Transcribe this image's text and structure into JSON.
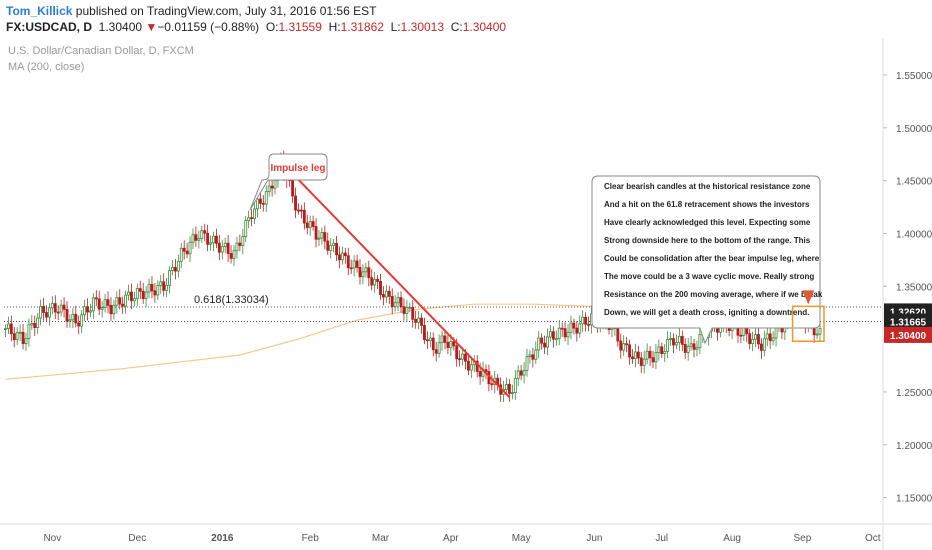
{
  "header": {
    "author": "Tom_Killick",
    "published": " published on TradingView.com, July 31, 2016 01:56 EST",
    "symbol": "FX:USDCAD, D",
    "last": "1.30400",
    "change_arrow": "▼",
    "change": "−0.01159 (−0.88%)",
    "o_label": "O:",
    "o_value": "1.31559",
    "h_label": "H:",
    "h_value": "1.31862",
    "l_label": "L:",
    "l_value": "1.30013",
    "c_label": "C:",
    "c_value": "1.30400"
  },
  "legend": {
    "title": "U.S. Dollar/Canadian Dollar, D, FXCM",
    "indicator": "MA (200, close)"
  },
  "chart_data": {
    "type": "candlestick",
    "ylim": [
      1.125,
      1.585
    ],
    "y_ticks": [
      "1.55000",
      "1.50000",
      "1.45000",
      "1.40000",
      "1.35000",
      "1.30000",
      "1.25000",
      "1.20000",
      "1.15000"
    ],
    "x_ticks": [
      "Nov",
      "Dec",
      "2016",
      "Feb",
      "Mar",
      "Apr",
      "May",
      "Jun",
      "Jul",
      "Aug",
      "Sep",
      "Oct"
    ],
    "price_labels": [
      {
        "text": "1.32620",
        "style": "dark",
        "value": 1.3262
      },
      {
        "text": "1.31665",
        "style": "dark",
        "value": 1.31665
      },
      {
        "text": "1.30400",
        "style": "red",
        "value": 1.304
      }
    ],
    "horizontal_lines": [
      1.33034,
      1.31665
    ],
    "fib_label": "0.618(1.33034)",
    "annotation_impulse": "Impulse leg",
    "annotation_text": [
      "Clear bearish candles at the historical resistance zone",
      "And a hit on the 61.8 retracement shows the investors",
      "Have clearly acknowledged this level. Expecting some",
      "Strong downside here to the bottom of the range. This",
      "Could be consolidation after the bear impulse leg, where",
      "The move could be a 3 wave cyclic move. Really strong",
      "Resistance on the 200 moving average, where if we break",
      "Down, we will get a death cross, igniting a downtrend."
    ],
    "trend_line": {
      "from": 1.468,
      "to": 1.245
    },
    "price_path": [
      [
        0,
        1.31
      ],
      [
        6,
        1.3
      ],
      [
        12,
        1.325
      ],
      [
        18,
        1.33
      ],
      [
        24,
        1.315
      ],
      [
        30,
        1.335
      ],
      [
        36,
        1.33
      ],
      [
        42,
        1.34
      ],
      [
        48,
        1.345
      ],
      [
        54,
        1.35
      ],
      [
        60,
        1.38
      ],
      [
        66,
        1.4
      ],
      [
        72,
        1.39
      ],
      [
        78,
        1.38
      ],
      [
        84,
        1.42
      ],
      [
        90,
        1.44
      ],
      [
        94,
        1.468
      ],
      [
        100,
        1.42
      ],
      [
        106,
        1.4
      ],
      [
        112,
        1.385
      ],
      [
        118,
        1.37
      ],
      [
        124,
        1.36
      ],
      [
        130,
        1.34
      ],
      [
        136,
        1.33
      ],
      [
        140,
        1.32
      ],
      [
        146,
        1.29
      ],
      [
        150,
        1.3
      ],
      [
        156,
        1.28
      ],
      [
        162,
        1.27
      ],
      [
        168,
        1.255
      ],
      [
        172,
        1.25
      ],
      [
        176,
        1.27
      ],
      [
        182,
        1.295
      ],
      [
        188,
        1.305
      ],
      [
        194,
        1.31
      ],
      [
        200,
        1.32
      ],
      [
        206,
        1.315
      ],
      [
        210,
        1.295
      ],
      [
        216,
        1.28
      ],
      [
        222,
        1.285
      ],
      [
        228,
        1.3
      ],
      [
        234,
        1.29
      ],
      [
        240,
        1.31
      ],
      [
        246,
        1.315
      ],
      [
        252,
        1.305
      ],
      [
        258,
        1.295
      ],
      [
        264,
        1.31
      ],
      [
        270,
        1.325
      ],
      [
        274,
        1.315
      ],
      [
        278,
        1.304
      ]
    ],
    "ma200": [
      [
        0,
        1.262
      ],
      [
        40,
        1.272
      ],
      [
        80,
        1.285
      ],
      [
        100,
        1.3
      ],
      [
        120,
        1.318
      ],
      [
        140,
        1.328
      ],
      [
        160,
        1.333
      ],
      [
        180,
        1.333
      ],
      [
        200,
        1.331
      ],
      [
        240,
        1.327
      ],
      [
        278,
        1.322
      ]
    ]
  },
  "colors": {
    "up": "#3b8a3b",
    "down": "#b71c1c",
    "trend": "#e53935",
    "ma": "#f5c98a",
    "fib": "#555555",
    "box": "#f0962a",
    "axis_text": "#555555"
  }
}
